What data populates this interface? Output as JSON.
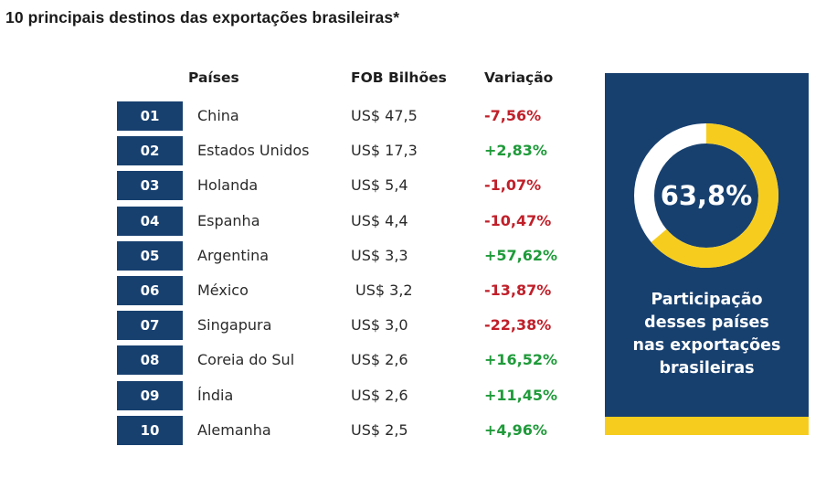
{
  "title": "10 principais destinos das exportações brasileiras*",
  "headers": {
    "country": "Países",
    "fob": "FOB Bilhões",
    "variation": "Variação"
  },
  "rows": [
    {
      "rank": "01",
      "country": "China",
      "fob": "US$ 47,5",
      "variation": "-7,56%",
      "sign": "neg"
    },
    {
      "rank": "02",
      "country": "Estados Unidos",
      "fob": "US$ 17,3",
      "variation": "+2,83%",
      "sign": "pos"
    },
    {
      "rank": "03",
      "country": "Holanda",
      "fob": "US$ 5,4",
      "variation": "-1,07%",
      "sign": "neg"
    },
    {
      "rank": "04",
      "country": "Espanha",
      "fob": "US$ 4,4",
      "variation": "-10,47%",
      "sign": "neg"
    },
    {
      "rank": "05",
      "country": "Argentina",
      "fob": "US$ 3,3",
      "variation": "+57,62%",
      "sign": "pos"
    },
    {
      "rank": "06",
      "country": "México",
      "fob": "US$ 3,2",
      "variation": "-13,87%",
      "sign": "neg"
    },
    {
      "rank": "07",
      "country": "Singapura",
      "fob": "US$ 3,0",
      "variation": "-22,38%",
      "sign": "neg"
    },
    {
      "rank": "08",
      "country": "Coreia do Sul",
      "fob": "US$ 2,6",
      "variation": "+16,52%",
      "sign": "pos"
    },
    {
      "rank": "09",
      "country": "Índia",
      "fob": "US$ 2,6",
      "variation": "+11,45%",
      "sign": "pos"
    },
    {
      "rank": "10",
      "country": "Alemanha",
      "fob": "US$ 2,5",
      "variation": "+4,96%",
      "sign": "pos"
    }
  ],
  "panel": {
    "value_label": "63,8%",
    "caption_lines": [
      "Participação",
      "desses países",
      "nas exportações",
      "brasileiras"
    ]
  },
  "colors": {
    "navy": "#17406f",
    "yellow": "#f6cd1f",
    "negative": "#c0202a",
    "positive": "#1f9a3a"
  },
  "chart_data": [
    {
      "type": "table",
      "title": "10 principais destinos das exportações brasileiras*",
      "columns": [
        "Países",
        "FOB Bilhões",
        "Variação"
      ],
      "categories": [
        "China",
        "Estados Unidos",
        "Holanda",
        "Espanha",
        "Argentina",
        "México",
        "Singapura",
        "Coreia do Sul",
        "Índia",
        "Alemanha"
      ],
      "series": [
        {
          "name": "FOB Bilhões",
          "values": [
            47.5,
            17.3,
            5.4,
            4.4,
            3.3,
            3.2,
            3.0,
            2.6,
            2.6,
            2.5
          ]
        },
        {
          "name": "Variação",
          "values": [
            -7.56,
            2.83,
            -1.07,
            -10.47,
            57.62,
            -13.87,
            -22.38,
            16.52,
            11.45,
            4.96
          ]
        }
      ]
    },
    {
      "type": "pie",
      "title": "",
      "categories": [
        "Participação desses países nas exportações brasileiras",
        ""
      ],
      "values": [
        63.8,
        36.2
      ],
      "colors": [
        "#f6cd1f",
        "#ffffff"
      ]
    }
  ]
}
